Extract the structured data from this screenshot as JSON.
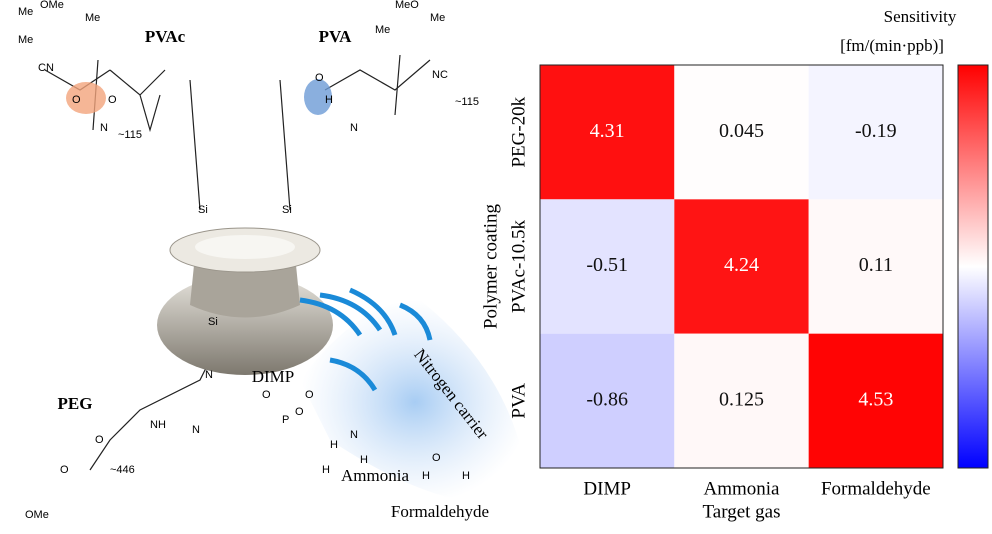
{
  "chart_data": {
    "type": "heatmap",
    "title": "Sensitivity",
    "colorbar_label": "[fm/(min·ppb)]",
    "xlabel": "Target gas",
    "ylabel": "Polymer coating",
    "categories": [
      "DIMP",
      "Ammonia",
      "Formaldehyde"
    ],
    "rows": [
      "PEG-20k",
      "PVAc-10.5k",
      "PVA"
    ],
    "values": [
      [
        4.31,
        0.045,
        -0.19
      ],
      [
        -0.51,
        4.24,
        0.11
      ],
      [
        -0.86,
        0.125,
        4.53
      ]
    ],
    "zlim": [
      -4.6,
      4.6
    ],
    "low_color": "#0000ff",
    "mid_color": "#ffffff",
    "high_color": "#ff0000"
  },
  "diagram": {
    "pvac": "PVAc",
    "pva": "PVA",
    "peg": "PEG",
    "dimp": "DIMP",
    "ammonia": "Ammonia",
    "formaldehyde": "Formaldehyde",
    "carrier": "Nitrogen carrier",
    "n_pvac": "~115",
    "n_pva": "~115",
    "n_peg": "~446",
    "atoms": [
      "Me",
      "OMe",
      "Me",
      "CN",
      "Me",
      "MeO",
      "Me",
      "Me",
      "NC",
      "O",
      "O",
      "N",
      "O",
      "H",
      "N",
      "Si",
      "Si",
      "Si",
      "N",
      "N",
      "NH",
      "O",
      "O",
      "OMe",
      "P",
      "O",
      "O",
      "O",
      "N",
      "H",
      "H",
      "H",
      "O",
      "H",
      "H"
    ]
  }
}
